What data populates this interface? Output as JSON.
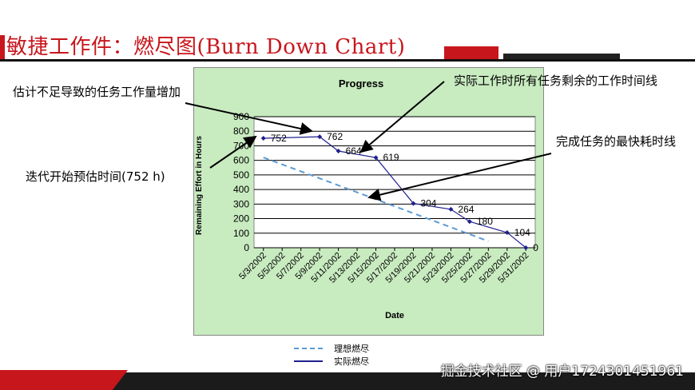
{
  "slide": {
    "title": "敏捷工作件：燃尽图(Burn Down Chart)",
    "watermark": "掘金技术社区 @ 用户1724301451961"
  },
  "callouts": {
    "estimate_increase": "估计不足导致的任务工作量增加",
    "actual_line": "实际工作时所有任务剩余的工作时间线",
    "fastest_line": "完成任务的最快耗时线",
    "iteration_start": "迭代开始预估时间(752 h)"
  },
  "legend": {
    "ideal": "理想燃尽",
    "actual": "实际燃尽"
  },
  "colors": {
    "accent_red": "#c8161d",
    "plot_bg": "#ffffff",
    "frame_bg": "#c8ebc0",
    "actual_line": "#1f1f8f",
    "ideal_line": "#5b9bd5"
  },
  "chart_data": {
    "type": "line",
    "title": "Progress",
    "xlabel": "Date",
    "ylabel": "Remaining Effort in Hours",
    "ylim": [
      0,
      900
    ],
    "yticks": [
      0,
      100,
      200,
      300,
      400,
      500,
      600,
      700,
      800,
      900
    ],
    "grid": true,
    "categories": [
      "5/3/2002",
      "5/5/2002",
      "5/7/2002",
      "5/9/2002",
      "5/11/2002",
      "5/13/2002",
      "5/15/2002",
      "5/17/2002",
      "5/19/2002",
      "5/21/2002",
      "5/23/2002",
      "5/25/2002",
      "5/27/2002",
      "5/29/2002",
      "5/31/2002"
    ],
    "series": [
      {
        "name": "实际燃尽",
        "style": "solid",
        "points": [
          {
            "x": "5/3/2002",
            "y": 752,
            "label": "752"
          },
          {
            "x": "5/9/2002",
            "y": 762,
            "label": "762"
          },
          {
            "x": "5/11/2002",
            "y": 664,
            "label": "664"
          },
          {
            "x": "5/15/2002",
            "y": 619,
            "label": "619"
          },
          {
            "x": "5/19/2002",
            "y": 304,
            "label": "304"
          },
          {
            "x": "5/23/2002",
            "y": 264,
            "label": "264"
          },
          {
            "x": "5/25/2002",
            "y": 180,
            "label": "180"
          },
          {
            "x": "5/29/2002",
            "y": 104,
            "label": "104"
          },
          {
            "x": "5/31/2002",
            "y": 0,
            "label": "0"
          }
        ]
      },
      {
        "name": "理想燃尽",
        "style": "dashed",
        "points": [
          {
            "x": "5/3/2002",
            "y": 620
          },
          {
            "x": "5/27/2002",
            "y": 45
          }
        ]
      }
    ]
  }
}
